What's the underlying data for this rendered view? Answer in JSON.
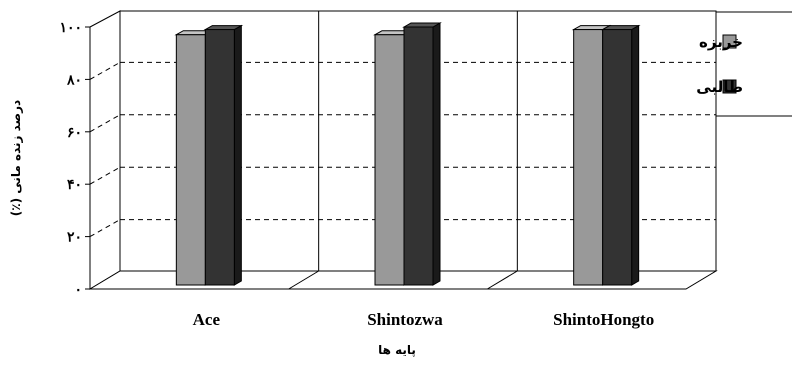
{
  "chart_data": {
    "type": "bar",
    "categories": [
      "Ace",
      "Shintozwa",
      "ShintoHongto"
    ],
    "series": [
      {
        "name": "خربزه",
        "values": [
          97,
          97,
          99
        ],
        "color": "#999999"
      },
      {
        "name": "طالبی",
        "values": [
          99,
          100,
          99
        ],
        "color": "#333333"
      }
    ],
    "ylim": [
      0,
      100
    ],
    "yticks": [
      "۰",
      "۲۰",
      "۴۰",
      "۶۰",
      "۸۰",
      "۱۰۰"
    ],
    "ylabel": "درصد زنده مانی (٪)",
    "xlabel": "پایه ها",
    "grid": "dashed-horizontal",
    "legend_position": "right",
    "style": "3d-clustered-column"
  }
}
